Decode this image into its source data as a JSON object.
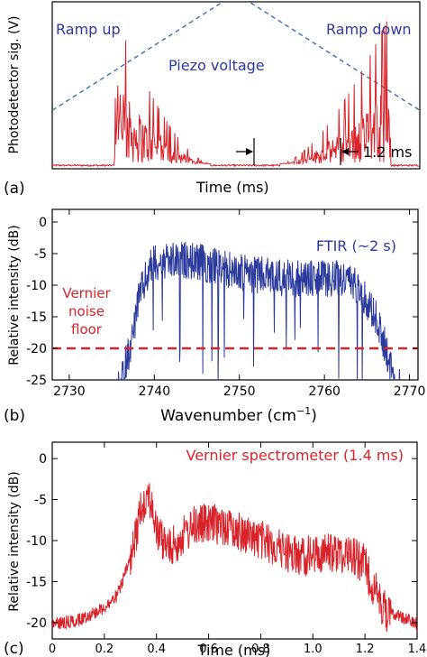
{
  "colors": {
    "red": "#d8232a",
    "blue": "#2b3a9c",
    "dash_blue": "#3a6fb5",
    "axis": "#000000"
  },
  "chart_data": [
    {
      "panel": "(a)",
      "type": "line",
      "xlabel": "Time (ms)",
      "ylabel": "Photodetector sig. (V)",
      "annotations": {
        "ramp_up": "Ramp up",
        "ramp_down": "Ramp down",
        "piezo": "Piezo voltage",
        "interval": "1.2 ms"
      },
      "series": [
        {
          "name": "Piezo voltage",
          "style": "dashed",
          "x": [
            0,
            0.5,
            1
          ],
          "y": [
            0.35,
            1.05,
            0.35
          ]
        },
        {
          "name": "Photodetector",
          "style": "bursts",
          "bursts": [
            {
              "start": 0.17,
              "end": 0.43,
              "peak": 0.9
            },
            {
              "start": 0.62,
              "end": 0.92,
              "peak": 0.9
            }
          ]
        }
      ]
    },
    {
      "panel": "(b)",
      "type": "line",
      "xlabel": "Wavenumber (cm",
      "xlabel_sup": "−1",
      "xlabel_end": ")",
      "ylabel": "Relative intensity (dB)",
      "xlim": [
        2728,
        2771
      ],
      "ylim": [
        -25,
        2
      ],
      "xticks": [
        2730,
        2740,
        2750,
        2760,
        2770
      ],
      "yticks": [
        0,
        -5,
        -10,
        -15,
        -20,
        -25
      ],
      "series_label": "FTIR (~2 s)",
      "noise_floor": {
        "value": -20,
        "label_lines": [
          "Vernier",
          "noise",
          "floor"
        ]
      },
      "envelope_x": [
        2735.5,
        2736.5,
        2737.5,
        2738,
        2739,
        2740,
        2741,
        2744,
        2750,
        2756,
        2762,
        2764,
        2766,
        2767,
        2768,
        2769.5
      ],
      "envelope_y": [
        -25,
        -20,
        -15,
        -10,
        -6,
        -3,
        -3.5,
        -3,
        -5,
        -6,
        -6,
        -7,
        -12,
        -16,
        -21,
        -25
      ]
    },
    {
      "panel": "(c)",
      "type": "line",
      "xlabel": "Time (ms)",
      "ylabel": "Relative intensity (dB)",
      "xlim": [
        0,
        1.4
      ],
      "ylim": [
        -22,
        2
      ],
      "xticks": [
        0,
        0.2,
        0.4,
        0.6,
        0.8,
        1.0,
        1.2,
        1.4
      ],
      "xtick_labels": [
        "0",
        "0.2",
        "0.4",
        "0.6",
        "0.8",
        "1.0",
        "1.2",
        "1.4"
      ],
      "yticks": [
        0,
        -5,
        -10,
        -15,
        -20
      ],
      "series_label": "Vernier spectrometer (1.4 ms)",
      "envelope_x": [
        0,
        0.1,
        0.2,
        0.25,
        0.3,
        0.34,
        0.37,
        0.4,
        0.45,
        0.55,
        0.65,
        0.8,
        0.95,
        1.05,
        1.15,
        1.2,
        1.25,
        1.3,
        1.4
      ],
      "envelope_y": [
        -20,
        -19.5,
        -18,
        -16.5,
        -12,
        -5,
        -3,
        -8,
        -10,
        -7,
        -7,
        -9,
        -11,
        -10.5,
        -10.5,
        -12,
        -16,
        -18.5,
        -20
      ]
    }
  ]
}
